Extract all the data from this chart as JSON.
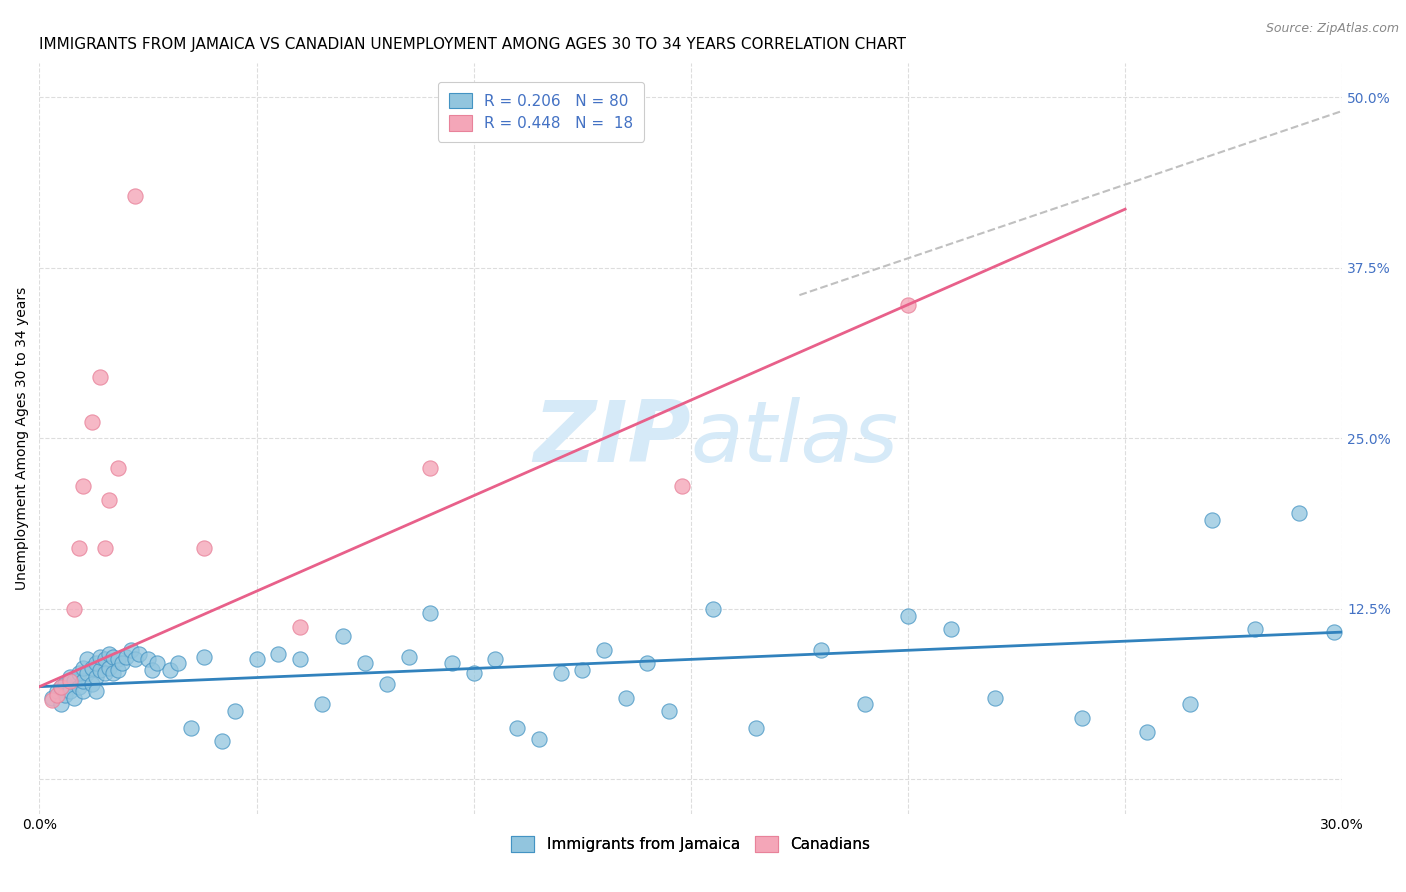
{
  "title": "IMMIGRANTS FROM JAMAICA VS CANADIAN UNEMPLOYMENT AMONG AGES 30 TO 34 YEARS CORRELATION CHART",
  "source": "Source: ZipAtlas.com",
  "ylabel": "Unemployment Among Ages 30 to 34 years",
  "xlim": [
    0.0,
    0.3
  ],
  "ylim": [
    -0.025,
    0.525
  ],
  "xtick_positions": [
    0.0,
    0.05,
    0.1,
    0.15,
    0.2,
    0.25,
    0.3
  ],
  "xtick_labels": [
    "0.0%",
    "",
    "",
    "",
    "",
    "",
    "30.0%"
  ],
  "ytick_positions": [
    0.0,
    0.125,
    0.25,
    0.375,
    0.5
  ],
  "ytick_labels_right": [
    "",
    "12.5%",
    "25.0%",
    "37.5%",
    "50.0%"
  ],
  "blue_R": "0.206",
  "blue_N": "80",
  "pink_R": "0.448",
  "pink_N": "18",
  "blue_color": "#92c5de",
  "pink_color": "#f4a6b8",
  "blue_edge_color": "#4393c3",
  "pink_edge_color": "#e8829a",
  "blue_line_color": "#3182bd",
  "pink_line_color": "#e8608a",
  "dashed_line_color": "#c0c0c0",
  "watermark_color": "#d6eaf8",
  "grid_color": "#dddddd",
  "blue_scatter_x": [
    0.003,
    0.004,
    0.005,
    0.005,
    0.006,
    0.006,
    0.007,
    0.007,
    0.008,
    0.008,
    0.009,
    0.009,
    0.01,
    0.01,
    0.01,
    0.011,
    0.011,
    0.012,
    0.012,
    0.013,
    0.013,
    0.013,
    0.014,
    0.014,
    0.015,
    0.015,
    0.016,
    0.016,
    0.017,
    0.017,
    0.018,
    0.018,
    0.019,
    0.02,
    0.021,
    0.022,
    0.023,
    0.025,
    0.026,
    0.027,
    0.03,
    0.032,
    0.035,
    0.038,
    0.042,
    0.045,
    0.05,
    0.055,
    0.06,
    0.065,
    0.07,
    0.075,
    0.08,
    0.085,
    0.09,
    0.095,
    0.1,
    0.105,
    0.11,
    0.115,
    0.12,
    0.125,
    0.13,
    0.135,
    0.14,
    0.145,
    0.155,
    0.165,
    0.18,
    0.19,
    0.2,
    0.21,
    0.22,
    0.24,
    0.255,
    0.265,
    0.27,
    0.28,
    0.29,
    0.298
  ],
  "blue_scatter_y": [
    0.06,
    0.065,
    0.055,
    0.068,
    0.07,
    0.062,
    0.065,
    0.075,
    0.06,
    0.072,
    0.068,
    0.078,
    0.065,
    0.072,
    0.082,
    0.078,
    0.088,
    0.07,
    0.082,
    0.075,
    0.085,
    0.065,
    0.08,
    0.09,
    0.088,
    0.078,
    0.092,
    0.082,
    0.09,
    0.078,
    0.088,
    0.08,
    0.085,
    0.09,
    0.095,
    0.088,
    0.092,
    0.088,
    0.08,
    0.085,
    0.08,
    0.085,
    0.038,
    0.09,
    0.028,
    0.05,
    0.088,
    0.092,
    0.088,
    0.055,
    0.105,
    0.085,
    0.07,
    0.09,
    0.122,
    0.085,
    0.078,
    0.088,
    0.038,
    0.03,
    0.078,
    0.08,
    0.095,
    0.06,
    0.085,
    0.05,
    0.125,
    0.038,
    0.095,
    0.055,
    0.12,
    0.11,
    0.06,
    0.045,
    0.035,
    0.055,
    0.19,
    0.11,
    0.195,
    0.108
  ],
  "pink_scatter_x": [
    0.003,
    0.004,
    0.005,
    0.007,
    0.008,
    0.009,
    0.01,
    0.012,
    0.014,
    0.015,
    0.016,
    0.018,
    0.022,
    0.038,
    0.06,
    0.09,
    0.148,
    0.2
  ],
  "pink_scatter_y": [
    0.058,
    0.062,
    0.068,
    0.072,
    0.125,
    0.17,
    0.215,
    0.262,
    0.295,
    0.17,
    0.205,
    0.228,
    0.428,
    0.17,
    0.112,
    0.228,
    0.215,
    0.348
  ],
  "blue_trend_x": [
    0.0,
    0.3
  ],
  "blue_trend_y": [
    0.068,
    0.108
  ],
  "pink_trend_x": [
    0.0,
    0.25
  ],
  "pink_trend_y": [
    0.068,
    0.418
  ],
  "dashed_trend_x": [
    0.175,
    0.3
  ],
  "dashed_trend_y": [
    0.355,
    0.49
  ],
  "title_fontsize": 11,
  "axis_label_fontsize": 10,
  "tick_fontsize": 10,
  "legend_fontsize": 11
}
